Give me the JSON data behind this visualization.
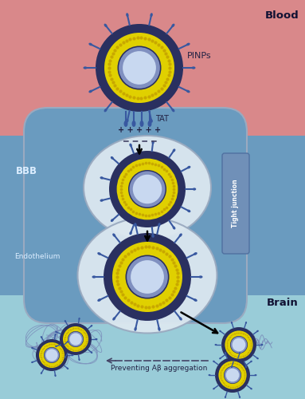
{
  "bg_blood_color": "#d9888a",
  "bg_bbb_top_color": "#6a9bbf",
  "bg_bbb_bot_color": "#5588aa",
  "bg_brain_color": "#99ccd8",
  "endosome_color": "#dce8f0",
  "endosome_edge_color": "#9aaac0",
  "tight_junction_color": "#7090b8",
  "pinp_outer_color": "#2a3060",
  "pinp_dot_color": "#c8a800",
  "pinp_yellow_color": "#e0d000",
  "pinp_inner_dark": "#2a3060",
  "pinp_inner_color": "#8090c0",
  "pinp_center_color": "#c8d8f0",
  "spike_color": "#3858a0",
  "fibril_color": "#7888b8",
  "text_blood": "Blood",
  "text_bbb": "BBB",
  "text_brain": "Brain",
  "text_endothelium": "Endothelium",
  "text_pinps": "PINPs",
  "text_tat": "TAT",
  "text_charges": "+ + + + +",
  "text_tight_junction": "Tight junction",
  "text_preventing": "Preventing Aβ aggregation",
  "figsize": [
    3.83,
    5.0
  ],
  "dpi": 100
}
